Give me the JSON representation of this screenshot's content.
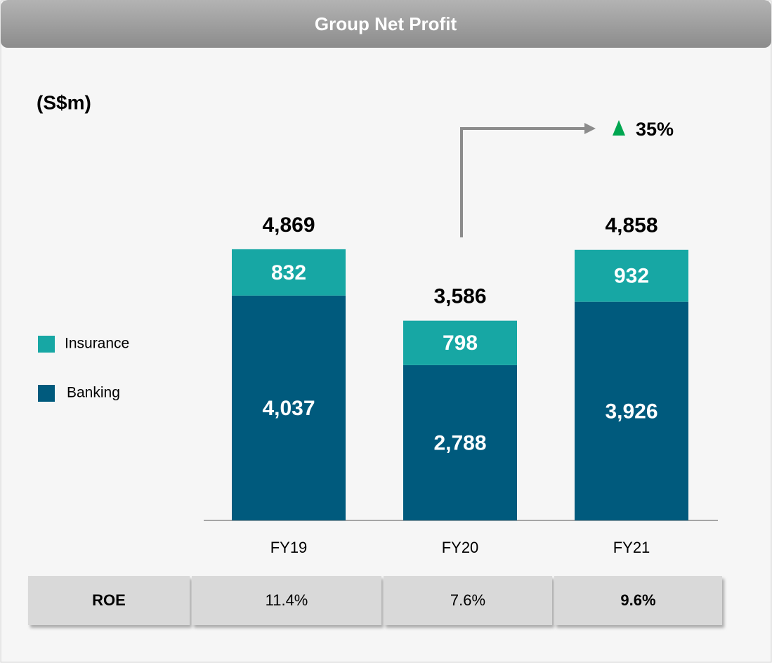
{
  "title": "Group Net Profit",
  "chart_data": {
    "type": "stacked_bar",
    "unit_label": "(S$m)",
    "categories": [
      "FY19",
      "FY20",
      "FY21"
    ],
    "series": [
      {
        "name": "Banking",
        "color": "#005a7d",
        "values": [
          4037,
          2788,
          3926
        ],
        "value_labels": [
          "4,037",
          "2,788",
          "3,926"
        ]
      },
      {
        "name": "Insurance",
        "color": "#17a7a4",
        "values": [
          832,
          798,
          932
        ]
      }
    ],
    "totals": [
      4869,
      3586,
      4858
    ],
    "total_labels": [
      "4,869",
      "3,586",
      "4,858"
    ],
    "annotation": "35%"
  },
  "table": {
    "header": "ROE",
    "cells": [
      "11.4%",
      "7.6%",
      "9.6%"
    ]
  }
}
